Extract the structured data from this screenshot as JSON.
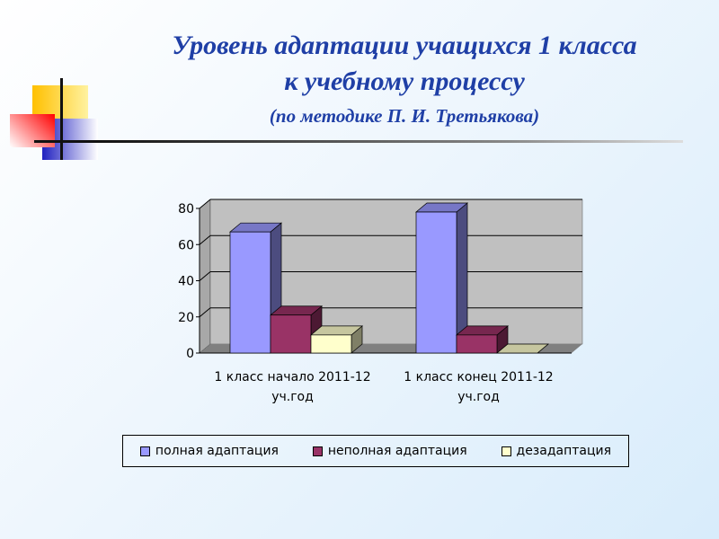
{
  "title": {
    "line1": "Уровень адаптации учащихся 1 класса",
    "line2": "к учебному процессу",
    "line3": "(по методике П. И. Третьякова)"
  },
  "chart_data": {
    "type": "bar",
    "style": "3d-clustered-column",
    "categories": [
      "1 класс начало 2011-12 уч.год",
      "1 класс конец 2011-12 уч.год"
    ],
    "category_lines": [
      [
        "1 класс начало 2011-12",
        "уч.год"
      ],
      [
        "1 класс конец 2011-12",
        "уч.год"
      ]
    ],
    "series": [
      {
        "name": "полная адаптация",
        "values": [
          67,
          78
        ],
        "color": "#9999ff"
      },
      {
        "name": "неполная адаптация",
        "values": [
          21,
          10
        ],
        "color": "#993366"
      },
      {
        "name": "дезадаптация",
        "values": [
          10,
          0
        ],
        "color": "#ffffcc"
      }
    ],
    "ylim": [
      0,
      80
    ],
    "yticks": [
      "0",
      "20",
      "40",
      "60",
      "80"
    ],
    "grid": true,
    "legend": "bottom",
    "wall_color": "#c0c0c0",
    "floor_color": "#808080"
  }
}
